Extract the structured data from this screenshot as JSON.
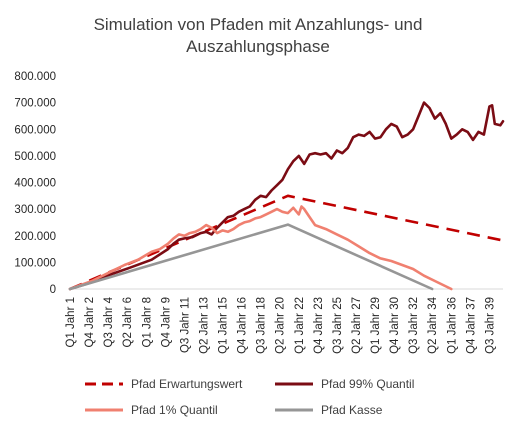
{
  "chart_data": {
    "type": "line",
    "title_lines": [
      "Simulation von Pfaden mit Anzahlungs- und",
      "Auszahlungsphase"
    ],
    "xlabel": "",
    "ylabel": "",
    "ylim": [
      0,
      800000
    ],
    "y_ticks": [
      0,
      100000,
      200000,
      300000,
      400000,
      500000,
      600000,
      700000,
      800000
    ],
    "y_tick_labels": [
      "0",
      "100.000",
      "200.000",
      "300.000",
      "400.000",
      "500.000",
      "600.000",
      "700.000",
      "800.000"
    ],
    "x_count": 160,
    "x_tick_labels": [
      "Q1 Jahr 1",
      "Q4 Jahr 2",
      "Q3 Jahr 4",
      "Q2 Jahr 6",
      "Q1 Jahr 8",
      "Q4 Jahr 9",
      "Q3 Jahr 11",
      "Q2 Jahr 13",
      "Q1 Jahr 15",
      "Q4 Jahr 16",
      "Q3 Jahr 18",
      "Q2 Jahr 20",
      "Q1 Jahr 22",
      "Q4 Jahr 23",
      "Q3 Jahr 25",
      "Q2 Jahr 27",
      "Q1 Jahr 29",
      "Q4 Jahr 30",
      "Q3 Jahr 32",
      "Q2 Jahr 34",
      "Q1 Jahr 36",
      "Q4 Jahr 37",
      "Q3 Jahr 39"
    ],
    "x_tick_step": 7,
    "grid": false,
    "legend_position": "bottom",
    "series": [
      {
        "name": "Pfad Erwartungswert",
        "color": "#C00000",
        "dash": true,
        "width": 2.6,
        "points": [
          [
            0,
            0
          ],
          [
            80,
            350000
          ],
          [
            159,
            182000
          ]
        ]
      },
      {
        "name": "Pfad 99% Quantil",
        "color": "#7B0C14",
        "dash": false,
        "width": 2.6,
        "points": [
          [
            0,
            0
          ],
          [
            8,
            25000
          ],
          [
            15,
            55000
          ],
          [
            22,
            80000
          ],
          [
            30,
            110000
          ],
          [
            36,
            150000
          ],
          [
            38,
            170000
          ],
          [
            40,
            185000
          ],
          [
            42,
            190000
          ],
          [
            45,
            195000
          ],
          [
            48,
            210000
          ],
          [
            50,
            215000
          ],
          [
            52,
            205000
          ],
          [
            54,
            230000
          ],
          [
            56,
            250000
          ],
          [
            58,
            270000
          ],
          [
            60,
            275000
          ],
          [
            62,
            290000
          ],
          [
            64,
            300000
          ],
          [
            66,
            310000
          ],
          [
            68,
            335000
          ],
          [
            70,
            350000
          ],
          [
            72,
            345000
          ],
          [
            74,
            370000
          ],
          [
            76,
            390000
          ],
          [
            78,
            410000
          ],
          [
            80,
            450000
          ],
          [
            82,
            480000
          ],
          [
            84,
            500000
          ],
          [
            86,
            470000
          ],
          [
            88,
            505000
          ],
          [
            90,
            510000
          ],
          [
            92,
            505000
          ],
          [
            94,
            510000
          ],
          [
            96,
            490000
          ],
          [
            98,
            520000
          ],
          [
            100,
            510000
          ],
          [
            102,
            530000
          ],
          [
            104,
            570000
          ],
          [
            106,
            580000
          ],
          [
            108,
            575000
          ],
          [
            110,
            590000
          ],
          [
            112,
            565000
          ],
          [
            114,
            570000
          ],
          [
            116,
            600000
          ],
          [
            118,
            620000
          ],
          [
            120,
            610000
          ],
          [
            122,
            570000
          ],
          [
            124,
            580000
          ],
          [
            126,
            600000
          ],
          [
            128,
            650000
          ],
          [
            130,
            700000
          ],
          [
            132,
            680000
          ],
          [
            134,
            640000
          ],
          [
            136,
            660000
          ],
          [
            138,
            620000
          ],
          [
            140,
            565000
          ],
          [
            142,
            580000
          ],
          [
            144,
            600000
          ],
          [
            146,
            590000
          ],
          [
            148,
            560000
          ],
          [
            150,
            590000
          ],
          [
            152,
            580000
          ],
          [
            154,
            685000
          ],
          [
            155,
            690000
          ],
          [
            156,
            620000
          ],
          [
            158,
            615000
          ],
          [
            159,
            630000
          ]
        ]
      },
      {
        "name": "Pfad 1% Quantil",
        "color": "#F08070",
        "dash": false,
        "width": 2.6,
        "points": [
          [
            0,
            0
          ],
          [
            8,
            30000
          ],
          [
            15,
            65000
          ],
          [
            20,
            90000
          ],
          [
            25,
            110000
          ],
          [
            30,
            140000
          ],
          [
            33,
            150000
          ],
          [
            36,
            170000
          ],
          [
            38,
            190000
          ],
          [
            40,
            205000
          ],
          [
            42,
            200000
          ],
          [
            44,
            210000
          ],
          [
            46,
            215000
          ],
          [
            48,
            225000
          ],
          [
            50,
            240000
          ],
          [
            52,
            230000
          ],
          [
            54,
            210000
          ],
          [
            56,
            220000
          ],
          [
            58,
            215000
          ],
          [
            60,
            225000
          ],
          [
            62,
            240000
          ],
          [
            64,
            250000
          ],
          [
            66,
            255000
          ],
          [
            68,
            265000
          ],
          [
            70,
            270000
          ],
          [
            72,
            280000
          ],
          [
            74,
            290000
          ],
          [
            76,
            300000
          ],
          [
            78,
            290000
          ],
          [
            80,
            285000
          ],
          [
            82,
            305000
          ],
          [
            84,
            280000
          ],
          [
            85,
            310000
          ],
          [
            86,
            300000
          ],
          [
            88,
            270000
          ],
          [
            90,
            240000
          ],
          [
            94,
            225000
          ],
          [
            98,
            205000
          ],
          [
            102,
            185000
          ],
          [
            106,
            160000
          ],
          [
            110,
            135000
          ],
          [
            114,
            115000
          ],
          [
            118,
            105000
          ],
          [
            122,
            90000
          ],
          [
            126,
            75000
          ],
          [
            130,
            50000
          ],
          [
            134,
            30000
          ],
          [
            137,
            15000
          ],
          [
            140,
            0
          ]
        ]
      },
      {
        "name": "Pfad Kasse",
        "color": "#969696",
        "dash": false,
        "width": 2.6,
        "points": [
          [
            0,
            0
          ],
          [
            80,
            242000
          ],
          [
            133,
            0
          ]
        ]
      }
    ],
    "legend": [
      {
        "name": "Pfad Erwartungswert",
        "row": 0,
        "col": 0
      },
      {
        "name": "Pfad 99% Quantil",
        "row": 0,
        "col": 1
      },
      {
        "name": "Pfad 1% Quantil",
        "row": 1,
        "col": 0
      },
      {
        "name": "Pfad Kasse",
        "row": 1,
        "col": 1
      }
    ]
  }
}
